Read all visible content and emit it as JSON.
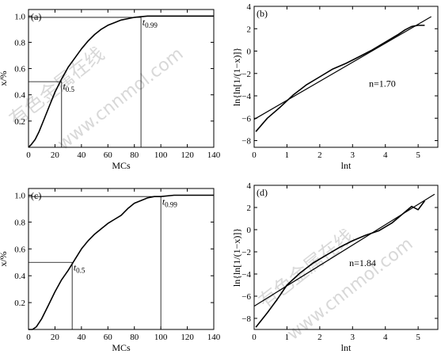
{
  "watermark": {
    "chinese": "有色金属在线",
    "url": "www.cnnmol.com"
  },
  "chart_data": [
    {
      "id": "a",
      "type": "line",
      "panel_label": "(a)",
      "xlabel": "MCs",
      "ylabel": "x/%",
      "xlim": [
        0,
        140
      ],
      "ylim": [
        0,
        1.05
      ],
      "xticks": [
        0,
        20,
        40,
        60,
        80,
        100,
        120,
        140
      ],
      "yticks": [
        0.2,
        0.4,
        0.6,
        0.8,
        1.0
      ],
      "ytick_format": 1,
      "grid": false,
      "series": [
        {
          "x": [
            0,
            2,
            5,
            8,
            12,
            16,
            20,
            25,
            30,
            35,
            40,
            45,
            50,
            55,
            60,
            65,
            70,
            75,
            80,
            85,
            90,
            100,
            110,
            120,
            130,
            140
          ],
          "y": [
            0,
            0.02,
            0.06,
            0.12,
            0.22,
            0.32,
            0.42,
            0.52,
            0.61,
            0.68,
            0.75,
            0.81,
            0.86,
            0.9,
            0.93,
            0.95,
            0.97,
            0.98,
            0.99,
            0.995,
            1.0,
            1.0,
            1.0,
            1.0,
            1.0,
            1.0
          ]
        }
      ],
      "markers": [
        {
          "label": "t",
          "sub": "0.5",
          "x": 25,
          "y": 0.5,
          "label_x": 26,
          "label_y": 0.44
        },
        {
          "label": "t",
          "sub": "0.99",
          "x": 85,
          "y": 0.99,
          "label_x": 86,
          "label_y": 0.93
        }
      ]
    },
    {
      "id": "b",
      "type": "line",
      "panel_label": "(b)",
      "xlabel": "lnt",
      "ylabel": "ln{ln[1/(1−x)]}",
      "xlim": [
        0,
        5.6
      ],
      "ylim": [
        -8.6,
        4
      ],
      "xticks": [
        0,
        1,
        2,
        3,
        4,
        5
      ],
      "yticks": [
        -8,
        -6,
        -4,
        -2,
        0,
        2,
        4
      ],
      "ytick_format": 0,
      "grid": false,
      "series": [
        {
          "x": [
            0.05,
            0.4,
            0.8,
            1.2,
            1.6,
            2.0,
            2.4,
            2.8,
            3.2,
            3.6,
            4.0,
            4.4,
            4.6,
            4.8,
            5.0,
            5.2
          ],
          "y": [
            -7.2,
            -6.0,
            -5.0,
            -3.9,
            -3.0,
            -2.3,
            -1.6,
            -1.1,
            -0.5,
            0.1,
            0.8,
            1.5,
            1.9,
            2.2,
            2.3,
            2.3
          ]
        },
        {
          "x": [
            0,
            5.4
          ],
          "y": [
            -6.1,
            3.08
          ]
        }
      ],
      "annotations": [
        {
          "text": "n=1.70",
          "x": 3.5,
          "y": -3.2
        }
      ]
    },
    {
      "id": "c",
      "type": "line",
      "panel_label": "(c)",
      "xlabel": "MCs",
      "ylabel": "x/%",
      "xlim": [
        0,
        140
      ],
      "ylim": [
        0,
        1.05
      ],
      "xticks": [
        0,
        20,
        40,
        60,
        80,
        100,
        120,
        140
      ],
      "yticks": [
        0.2,
        0.4,
        0.6,
        0.8,
        1.0
      ],
      "ytick_format": 1,
      "grid": false,
      "series": [
        {
          "x": [
            0,
            3,
            6,
            10,
            15,
            20,
            25,
            30,
            35,
            40,
            45,
            50,
            55,
            60,
            65,
            70,
            75,
            80,
            85,
            90,
            95,
            100,
            110,
            120,
            130,
            140
          ],
          "y": [
            0,
            0.0,
            0.02,
            0.08,
            0.18,
            0.28,
            0.37,
            0.44,
            0.52,
            0.6,
            0.66,
            0.71,
            0.75,
            0.79,
            0.82,
            0.85,
            0.9,
            0.94,
            0.96,
            0.98,
            0.99,
            0.99,
            1.0,
            1.0,
            1.0,
            1.0
          ]
        }
      ],
      "markers": [
        {
          "label": "t",
          "sub": "0.5",
          "x": 33,
          "y": 0.5,
          "label_x": 34,
          "label_y": 0.44
        },
        {
          "label": "t",
          "sub": "0.99",
          "x": 100,
          "y": 0.99,
          "label_x": 101,
          "label_y": 0.93
        }
      ]
    },
    {
      "id": "d",
      "type": "line",
      "panel_label": "(d)",
      "xlabel": "lnt",
      "ylabel": "ln{ln[1/(1−x)]}",
      "xlim": [
        0,
        5.6
      ],
      "ylim": [
        -9,
        4
      ],
      "xticks": [
        0,
        1,
        2,
        3,
        4,
        5
      ],
      "yticks": [
        -8,
        -6,
        -4,
        -2,
        0,
        2,
        4
      ],
      "ytick_format": 0,
      "grid": false,
      "series": [
        {
          "x": [
            0.05,
            0.4,
            0.7,
            1.0,
            1.4,
            1.8,
            2.2,
            2.6,
            3.0,
            3.4,
            3.8,
            4.2,
            4.6,
            4.8,
            5.0,
            5.2
          ],
          "y": [
            -8.8,
            -7.5,
            -6.3,
            -5.0,
            -3.9,
            -3.0,
            -2.3,
            -1.6,
            -1.0,
            -0.5,
            -0.1,
            0.6,
            1.6,
            2.1,
            1.8,
            2.6
          ]
        },
        {
          "x": [
            0,
            5.5
          ],
          "y": [
            -6.9,
            3.2
          ]
        }
      ],
      "annotations": [
        {
          "text": "n=1.84",
          "x": 2.9,
          "y": -3.3
        }
      ]
    }
  ]
}
